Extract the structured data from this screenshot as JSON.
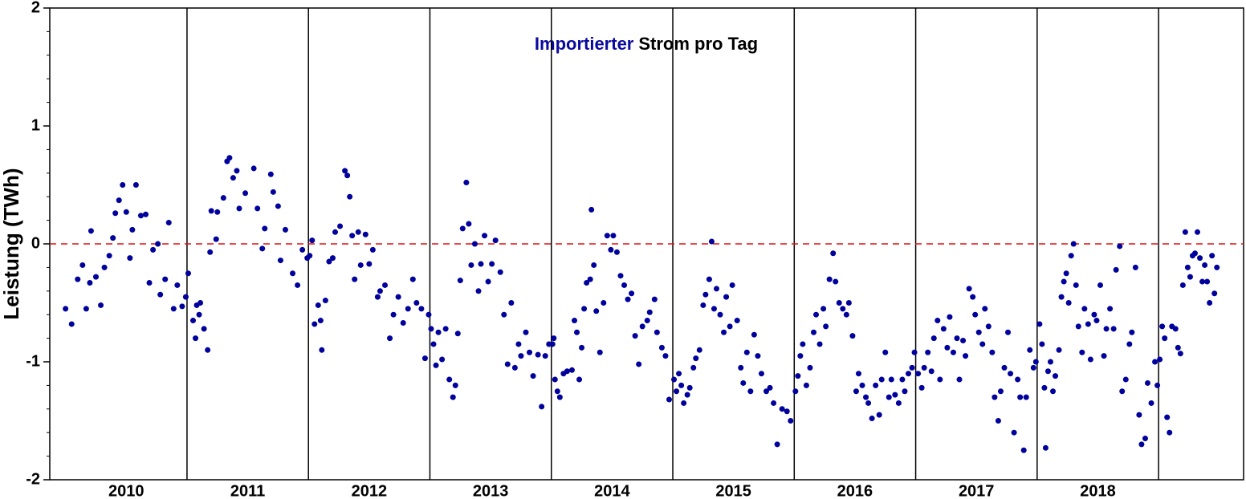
{
  "chart_data": {
    "type": "scatter",
    "title": [
      {
        "text": "Importierter",
        "color": "#0a0aa0"
      },
      {
        "text": "Strom pro Tag",
        "color": "#000000"
      }
    ],
    "ylabel": "Leistung (TWh)",
    "color": "#00009c",
    "xlim": [
      2009.87,
      2019.7
    ],
    "ylim": [
      -2,
      2
    ],
    "yticks": [
      -2,
      -1,
      0,
      1,
      2
    ],
    "yminorticks": [
      -1.8,
      -1.6,
      -1.4,
      -1.2,
      -0.8,
      -0.6,
      -0.4,
      -0.2,
      0.2,
      0.4,
      0.6,
      0.8,
      1.2,
      1.4,
      1.6,
      1.8
    ],
    "xticks": [
      {
        "value": 2010.5,
        "label": "2010"
      },
      {
        "value": 2011.5,
        "label": "2011"
      },
      {
        "value": 2012.5,
        "label": "2012"
      },
      {
        "value": 2013.5,
        "label": "2013"
      },
      {
        "value": 2014.5,
        "label": "2014"
      },
      {
        "value": 2015.5,
        "label": "2015"
      },
      {
        "value": 2016.5,
        "label": "2016"
      },
      {
        "value": 2017.5,
        "label": "2017"
      },
      {
        "value": 2018.5,
        "label": "2018"
      }
    ],
    "year_lines": [
      2011,
      2012,
      2013,
      2014,
      2015,
      2016,
      2017,
      2018,
      2019
    ],
    "hline": {
      "value": 0,
      "color": "#e01010",
      "dashed": true
    },
    "x": [
      2010.0,
      2010.05,
      2010.1,
      2010.14,
      2010.17,
      2010.2,
      2010.21,
      2010.25,
      2010.29,
      2010.32,
      2010.36,
      2010.39,
      2010.41,
      2010.44,
      2010.47,
      2010.5,
      2010.53,
      2010.55,
      2010.58,
      2010.62,
      2010.66,
      2010.69,
      2010.72,
      2010.76,
      2010.78,
      2010.82,
      2010.85,
      2010.89,
      2010.92,
      2010.96,
      2010.99,
      2011.01,
      2011.05,
      2011.07,
      2011.08,
      2011.1,
      2011.11,
      2011.14,
      2011.17,
      2011.19,
      2011.2,
      2011.24,
      2011.25,
      2011.3,
      2011.33,
      2011.35,
      2011.38,
      2011.41,
      2011.43,
      2011.48,
      2011.55,
      2011.58,
      2011.62,
      2011.64,
      2011.69,
      2011.71,
      2011.75,
      2011.77,
      2011.81,
      2011.87,
      2011.91,
      2011.95,
      2011.99,
      2012.01,
      2012.03,
      2012.05,
      2012.08,
      2012.1,
      2012.11,
      2012.14,
      2012.17,
      2012.2,
      2012.22,
      2012.26,
      2012.3,
      2012.32,
      2012.34,
      2012.36,
      2012.38,
      2012.41,
      2012.43,
      2012.47,
      2012.5,
      2012.53,
      2012.57,
      2012.59,
      2012.63,
      2012.67,
      2012.7,
      2012.74,
      2012.78,
      2012.82,
      2012.86,
      2012.89,
      2012.93,
      2012.96,
      2012.99,
      2013.01,
      2013.03,
      2013.05,
      2013.07,
      2013.1,
      2013.13,
      2013.16,
      2013.19,
      2013.21,
      2013.23,
      2013.25,
      2013.27,
      2013.3,
      2013.32,
      2013.34,
      2013.37,
      2013.4,
      2013.42,
      2013.45,
      2013.48,
      2013.51,
      2013.54,
      2013.58,
      2013.61,
      2013.64,
      2013.67,
      2013.7,
      2013.73,
      2013.75,
      2013.79,
      2013.82,
      2013.85,
      2013.89,
      2013.92,
      2013.95,
      2013.98,
      2014.01,
      2014.02,
      2014.03,
      2014.05,
      2014.07,
      2014.1,
      2014.13,
      2014.17,
      2014.19,
      2014.21,
      2014.23,
      2014.25,
      2014.27,
      2014.29,
      2014.32,
      2014.33,
      2014.35,
      2014.37,
      2014.4,
      2014.43,
      2014.46,
      2014.49,
      2014.51,
      2014.54,
      2014.57,
      2014.6,
      2014.63,
      2014.66,
      2014.69,
      2014.72,
      2014.75,
      2014.79,
      2014.81,
      2014.85,
      2014.87,
      2014.91,
      2014.94,
      2014.97,
      2015.01,
      2015.03,
      2015.05,
      2015.07,
      2015.09,
      2015.12,
      2015.14,
      2015.17,
      2015.19,
      2015.22,
      2015.25,
      2015.27,
      2015.3,
      2015.32,
      2015.34,
      2015.36,
      2015.39,
      2015.42,
      2015.44,
      2015.47,
      2015.49,
      2015.53,
      2015.56,
      2015.58,
      2015.61,
      2015.64,
      2015.67,
      2015.7,
      2015.73,
      2015.77,
      2015.8,
      2015.83,
      2015.86,
      2015.9,
      2015.94,
      2015.97,
      2016.01,
      2016.03,
      2016.05,
      2016.07,
      2016.1,
      2016.13,
      2016.16,
      2016.18,
      2016.21,
      2016.24,
      2016.26,
      2016.29,
      2016.32,
      2016.34,
      2016.37,
      2016.4,
      2016.43,
      2016.45,
      2016.48,
      2016.51,
      2016.53,
      2016.56,
      2016.59,
      2016.61,
      2016.64,
      2016.67,
      2016.7,
      2016.72,
      2016.75,
      2016.78,
      2016.8,
      2016.83,
      2016.86,
      2016.89,
      2016.91,
      2016.94,
      2016.97,
      2016.99,
      2017.02,
      2017.05,
      2017.07,
      2017.1,
      2017.13,
      2017.15,
      2017.18,
      2017.2,
      2017.23,
      2017.26,
      2017.28,
      2017.31,
      2017.34,
      2017.36,
      2017.39,
      2017.41,
      2017.44,
      2017.47,
      2017.49,
      2017.52,
      2017.55,
      2017.57,
      2017.6,
      2017.63,
      2017.65,
      2017.68,
      2017.7,
      2017.73,
      2017.76,
      2017.78,
      2017.81,
      2017.84,
      2017.86,
      2017.89,
      2017.91,
      2017.94,
      2017.97,
      2017.99,
      2018.02,
      2018.04,
      2018.06,
      2018.07,
      2018.09,
      2018.11,
      2018.13,
      2018.15,
      2018.18,
      2018.2,
      2018.22,
      2018.24,
      2018.26,
      2018.28,
      2018.3,
      2018.32,
      2018.34,
      2018.37,
      2018.39,
      2018.42,
      2018.44,
      2018.47,
      2018.49,
      2018.52,
      2018.55,
      2018.57,
      2018.6,
      2018.63,
      2018.65,
      2018.68,
      2018.7,
      2018.73,
      2018.76,
      2018.78,
      2018.81,
      2018.84,
      2018.86,
      2018.89,
      2018.91,
      2018.94,
      2018.97,
      2018.99,
      2019.01,
      2019.03,
      2019.05,
      2019.07,
      2019.09,
      2019.11,
      2019.14,
      2019.16,
      2019.18,
      2019.2,
      2019.22,
      2019.24,
      2019.26,
      2019.28,
      2019.3,
      2019.32,
      2019.34,
      2019.36,
      2019.38,
      2019.4,
      2019.42,
      2019.44,
      2019.46,
      2019.48
    ],
    "values": [
      -0.55,
      -0.68,
      -0.3,
      -0.18,
      -0.55,
      -0.33,
      0.11,
      -0.28,
      -0.52,
      -0.2,
      -0.1,
      0.05,
      0.26,
      0.37,
      0.5,
      0.27,
      -0.12,
      0.12,
      0.5,
      0.24,
      0.25,
      -0.33,
      -0.05,
      0.0,
      -0.43,
      -0.3,
      0.18,
      -0.55,
      -0.35,
      -0.53,
      -0.45,
      -0.25,
      -0.65,
      -0.8,
      -0.52,
      -0.6,
      -0.5,
      -0.72,
      -0.9,
      -0.07,
      0.28,
      0.04,
      0.27,
      0.39,
      0.7,
      0.73,
      0.56,
      0.62,
      0.3,
      0.43,
      0.64,
      0.3,
      -0.04,
      0.13,
      0.59,
      0.44,
      0.32,
      -0.14,
      0.12,
      -0.25,
      -0.35,
      -0.05,
      -0.12,
      -0.1,
      0.03,
      -0.68,
      -0.52,
      -0.65,
      -0.9,
      -0.48,
      -0.15,
      -0.12,
      0.1,
      0.15,
      0.62,
      0.58,
      0.4,
      0.07,
      -0.3,
      0.1,
      -0.18,
      0.08,
      -0.17,
      -0.05,
      -0.45,
      -0.4,
      -0.35,
      -0.8,
      -0.6,
      -0.45,
      -0.67,
      -0.55,
      -0.3,
      -0.5,
      -0.55,
      -0.97,
      -0.6,
      -0.72,
      -0.85,
      -1.03,
      -0.75,
      -0.98,
      -0.72,
      -1.15,
      -1.3,
      -1.2,
      -0.76,
      -0.31,
      0.13,
      0.52,
      0.17,
      -0.18,
      0.0,
      -0.4,
      -0.17,
      0.07,
      -0.32,
      -0.17,
      0.03,
      -0.24,
      -0.6,
      -1.02,
      -0.5,
      -1.05,
      -0.85,
      -0.95,
      -0.75,
      -0.92,
      -1.12,
      -0.94,
      -1.38,
      -0.95,
      -0.85,
      -0.85,
      -0.8,
      -1.15,
      -1.25,
      -1.3,
      -1.1,
      -1.08,
      -1.07,
      -0.65,
      -0.75,
      -1.15,
      -0.88,
      -0.55,
      -0.33,
      -0.3,
      0.29,
      -0.18,
      -0.57,
      -0.92,
      -0.5,
      0.07,
      -0.05,
      0.07,
      -0.07,
      -0.27,
      -0.35,
      -0.47,
      -0.42,
      -0.78,
      -1.02,
      -0.7,
      -0.65,
      -0.58,
      -0.47,
      -0.75,
      -0.88,
      -0.95,
      -1.32,
      -1.15,
      -1.25,
      -1.1,
      -1.2,
      -1.35,
      -1.28,
      -1.22,
      -1.05,
      -0.97,
      -0.9,
      -0.52,
      -0.43,
      -0.3,
      0.02,
      -0.55,
      -0.38,
      -0.6,
      -0.75,
      -0.45,
      -0.7,
      -0.35,
      -0.65,
      -1.05,
      -1.18,
      -0.92,
      -1.25,
      -0.77,
      -0.95,
      -1.1,
      -1.25,
      -1.22,
      -1.35,
      -1.7,
      -1.4,
      -1.42,
      -1.5,
      -1.25,
      -1.12,
      -0.95,
      -0.85,
      -1.2,
      -1.05,
      -0.75,
      -0.6,
      -0.85,
      -0.55,
      -0.7,
      -0.3,
      -0.08,
      -0.32,
      -0.5,
      -0.55,
      -0.6,
      -0.5,
      -0.78,
      -1.25,
      -1.1,
      -1.2,
      -1.3,
      -1.35,
      -1.48,
      -1.2,
      -1.45,
      -1.15,
      -0.92,
      -1.3,
      -1.15,
      -1.28,
      -1.35,
      -1.15,
      -1.25,
      -1.1,
      -1.05,
      -0.92,
      -1.1,
      -1.22,
      -1.05,
      -0.92,
      -1.08,
      -0.8,
      -0.65,
      -1.15,
      -0.72,
      -0.88,
      -0.62,
      -0.92,
      -0.8,
      -1.15,
      -0.82,
      -0.95,
      -0.38,
      -0.45,
      -0.6,
      -0.75,
      -0.85,
      -0.55,
      -0.7,
      -0.92,
      -1.3,
      -1.5,
      -1.25,
      -1.05,
      -0.75,
      -1.1,
      -1.6,
      -1.15,
      -1.3,
      -1.75,
      -1.3,
      -0.9,
      -1.05,
      -1.0,
      -0.68,
      -0.85,
      -1.22,
      -1.73,
      -1.08,
      -1.0,
      -1.25,
      -1.12,
      -0.9,
      -0.45,
      -0.32,
      -0.25,
      -0.5,
      -0.1,
      0.0,
      -0.35,
      -0.7,
      -0.92,
      -0.55,
      -0.68,
      -0.98,
      -0.6,
      -0.65,
      -0.35,
      -0.95,
      -0.72,
      -0.55,
      -0.72,
      -0.22,
      -0.02,
      -1.25,
      -1.15,
      -0.85,
      -0.75,
      -0.2,
      -1.45,
      -1.7,
      -1.65,
      -1.18,
      -1.35,
      -1.0,
      -1.2,
      -0.98,
      -0.7,
      -0.8,
      -1.47,
      -1.6,
      -0.7,
      -0.72,
      -0.88,
      -0.93,
      -0.35,
      0.1,
      -0.2,
      -0.28,
      -0.1,
      -0.08,
      0.1,
      -0.12,
      -0.32,
      -0.18,
      -0.32,
      -0.5,
      -0.1,
      -0.42,
      -0.2
    ]
  }
}
